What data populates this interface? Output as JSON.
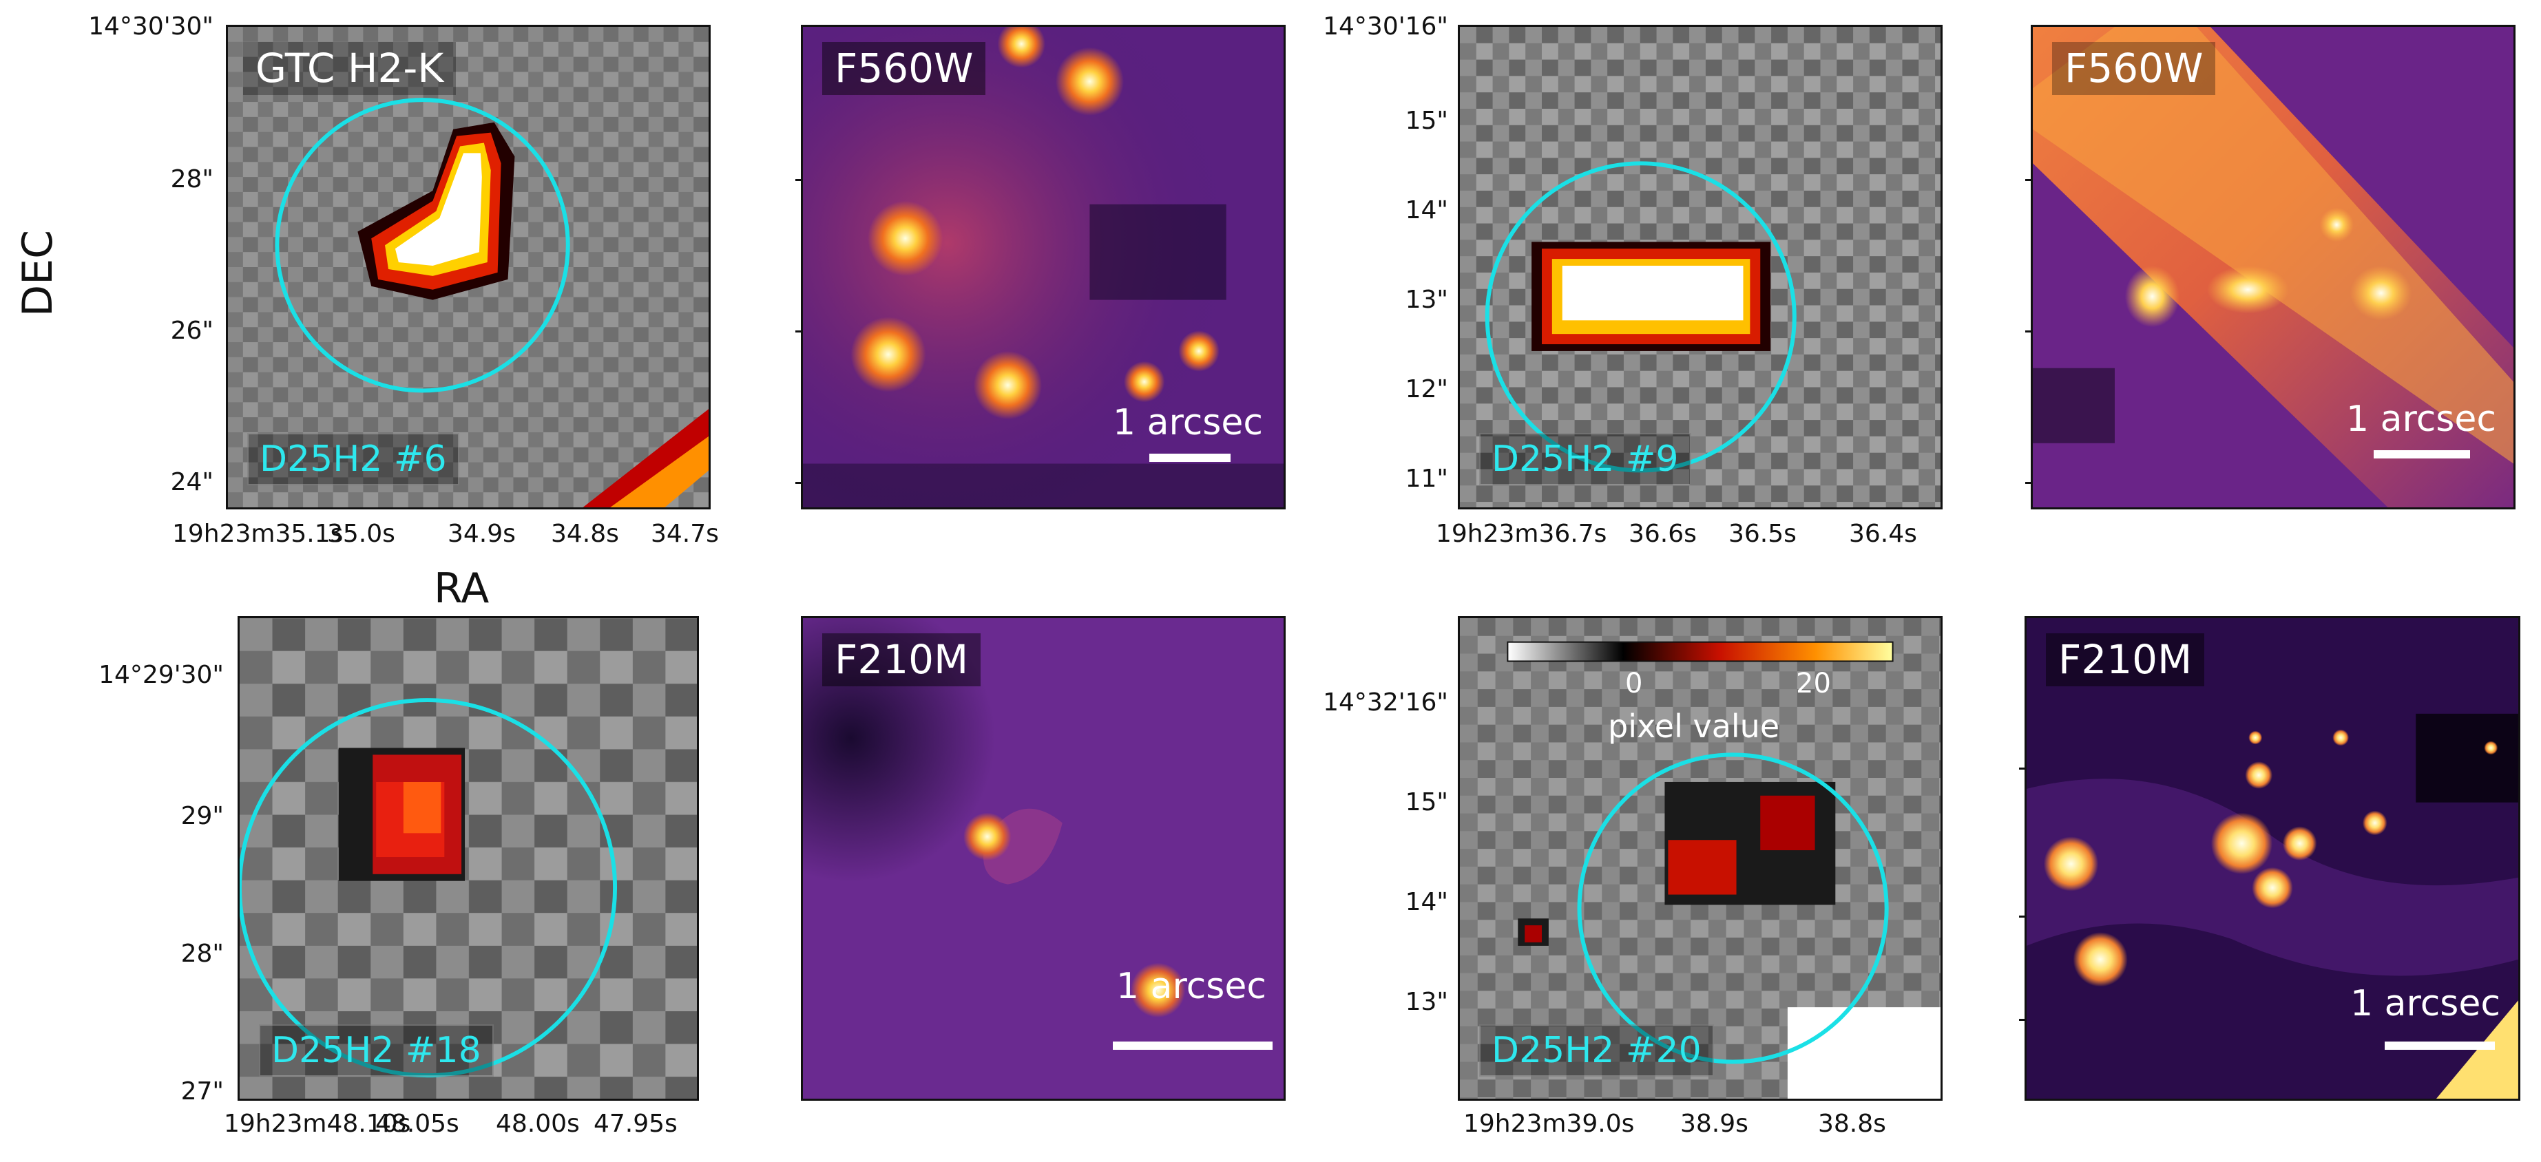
{
  "axis": {
    "ra_label": "RA",
    "dec_label": "DEC"
  },
  "panels": {
    "p1": {
      "filter": "GTC H2-K",
      "source": "D25H2 #6",
      "dec_ticks": [
        "14°30'30\"",
        "28\"",
        "26\"",
        "24\""
      ],
      "ra_ticks": [
        "19h23m35.1s",
        "35.0s",
        "34.9s",
        "34.8s",
        "34.7s"
      ]
    },
    "p2": {
      "filter": "F560W",
      "scale": "1 arcsec"
    },
    "p3": {
      "source": "D25H2 #9",
      "dec_ticks": [
        "14°30'16\"",
        "15\"",
        "14\"",
        "13\"",
        "12\"",
        "11\""
      ],
      "ra_ticks": [
        "19h23m36.7s",
        "36.6s",
        "36.5s",
        "36.4s"
      ]
    },
    "p4": {
      "filter": "F560W",
      "scale": "1 arcsec"
    },
    "p5": {
      "source": "D25H2 #18",
      "dec_ticks": [
        "14°29'30\"",
        "29\"",
        "28\"",
        "27\""
      ],
      "ra_ticks": [
        "19h23m48.10s",
        "48.05s",
        "48.00s",
        "47.95s"
      ]
    },
    "p6": {
      "filter": "F210M",
      "scale": "1 arcsec"
    },
    "p7": {
      "source": "D25H2 #20",
      "dec_ticks": [
        "14°32'16\"",
        "15\"",
        "14\"",
        "13\""
      ],
      "ra_ticks": [
        "19h23m39.0s",
        "38.9s",
        "38.8s"
      ],
      "colorbar": {
        "label": "pixel value",
        "tick0": "0",
        "tick20": "20"
      }
    },
    "p8": {
      "filter": "F210M",
      "scale": "1 arcsec"
    }
  },
  "colors": {
    "circle": "#1ae0e6",
    "gray_bg": "#7d7d7d",
    "inferno_bg": "#4a1a78"
  }
}
